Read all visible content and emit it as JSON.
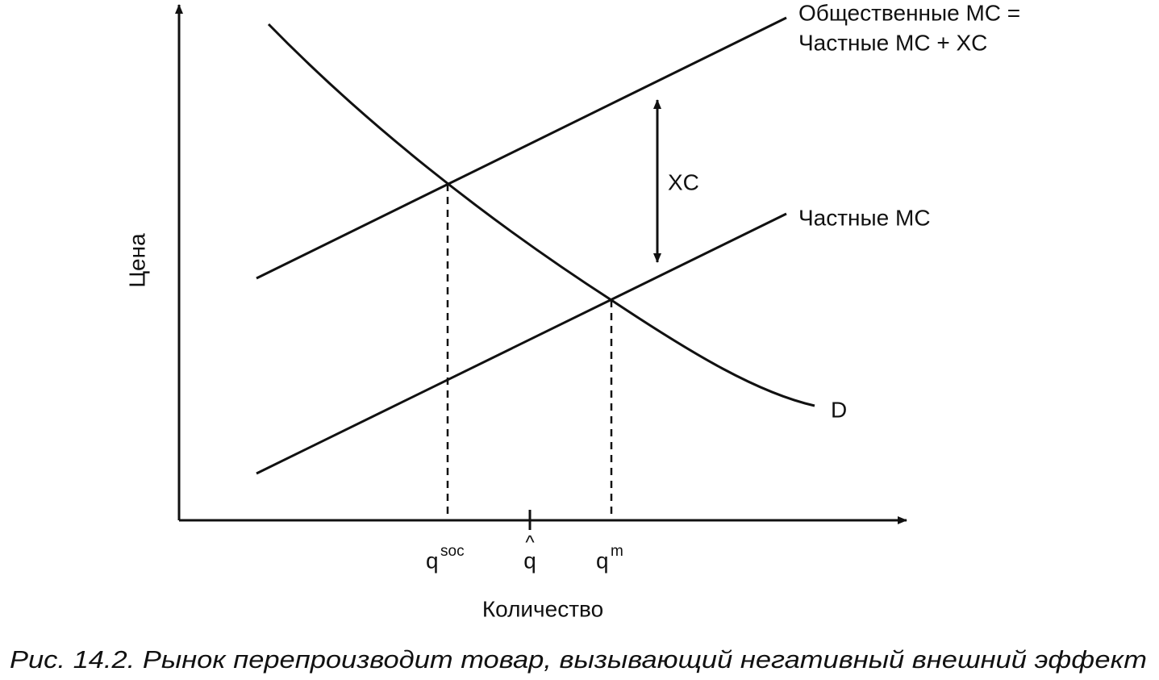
{
  "diagram": {
    "curves": [
      {
        "label_lines": [
          "Общественные MC =",
          "Частные MC + XC"
        ]
      },
      {
        "label_lines": [
          "Частные MC"
        ]
      },
      {
        "label_lines": [
          "D"
        ]
      }
    ],
    "gap_label": "XC",
    "y_axis_label": "Цена",
    "x_axis_label": "Количество",
    "ticks": [
      {
        "base": "q",
        "sup": "soc"
      },
      {
        "base": "q",
        "accent": "^"
      },
      {
        "base": "q",
        "sup": "m"
      }
    ]
  },
  "caption": "Рис. 14.2. Рынок перепроизводит товар, вызывающий негативный внешний эффект"
}
